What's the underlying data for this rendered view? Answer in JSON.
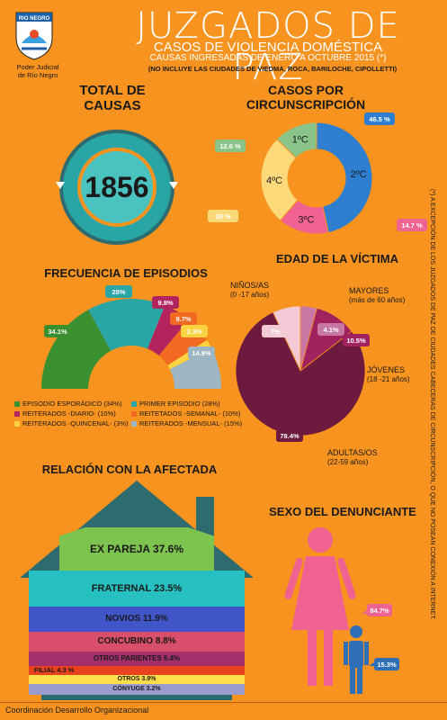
{
  "header": {
    "title": "JUZGADOS DE PAZ",
    "subtitle": "CASOS DE VIOLENCIA DOMÉSTICA",
    "range": "CAUSAS INGRESADAS DE ENERO A OCTUBRE 2015 (*)",
    "note": "(NO INCLUYE LAS CIUDADES DE VIEDMA, ROCA, BARILOCHE, CIPOLLETTI)",
    "logo_text": "RIO NEGRO",
    "logo_caption_1": "Poder Judicial",
    "logo_caption_2": "de Río Negro"
  },
  "side_note": "(*) A EXCEPCIÓN DE LOS JUZGADOS DE PAZ DE CIUDADES CABECERAS DE CIRCUNSCRIPCIÓN, O QUE NO POSEAN CONEXIÓN A INTERNET.",
  "footer": "Coordinación Desarrollo Organizacional",
  "colors": {
    "background": "#f7931e",
    "teal": "#2aa5a5",
    "blue": "#2f7fd0",
    "pink": "#f06292",
    "yellow": "#fdd97a",
    "green": "#8bc48a",
    "maroon": "#7a1b3f"
  },
  "chart_data": [
    {
      "type": "table",
      "title_line1": "TOTAL DE",
      "title_line2": "CAUSAS",
      "value": "1856"
    },
    {
      "type": "pie",
      "title_line1": "CASOS POR",
      "title_line2": "CIRCUNSCRIPCIÓN",
      "slices": [
        {
          "label": "2ºC",
          "value": 46.5,
          "badge": "46.5 %",
          "color": "#2f7fd0"
        },
        {
          "label": "3ºC",
          "value": 14.7,
          "badge": "14.7 %",
          "color": "#f06292"
        },
        {
          "label": "4ºC",
          "value": 26,
          "badge": "26 %",
          "color": "#fdd97a"
        },
        {
          "label": "1ºC",
          "value": 12.6,
          "badge": "12.6 %",
          "color": "#8bc48a"
        }
      ]
    },
    {
      "type": "pie",
      "title": "FRECUENCIA DE EPISODIOS",
      "slices": [
        {
          "label": "EPISODIO ESPORÁDICO (34%)",
          "value": 34.1,
          "badge": "34.1%",
          "color": "#3a8f2e"
        },
        {
          "label": "PRIMER EPISODIO (28%)",
          "value": 28,
          "badge": "28%",
          "color": "#2aa5a5"
        },
        {
          "label": "REITERADOS -DIARIO- (10%)",
          "value": 9.8,
          "badge": "9.8%",
          "color": "#b3245f"
        },
        {
          "label": "REITETADOS -SEMANAL- (10%)",
          "value": 9.7,
          "badge": "9.7%",
          "color": "#f26a21"
        },
        {
          "label": "REITERADOS -QUINCENAL- (3%)",
          "value": 3.3,
          "badge": "3.3%",
          "color": "#ffd23f"
        },
        {
          "label": "REITERADOS -MENSUAL- (15%)",
          "value": 14.9,
          "badge": "14.9%",
          "color": "#9eb5c4"
        }
      ]
    },
    {
      "type": "pie",
      "title": "EDAD DE LA VÍCTIMA",
      "slices": [
        {
          "label": "ADULTAS/OS",
          "sublabel": "(22-59 años)",
          "value": 78.4,
          "badge": "78.4%",
          "color": "#6d1a3e"
        },
        {
          "label": "NIÑOS/AS",
          "sublabel": "(0 -17 años)",
          "value": 7,
          "badge": "7%",
          "color": "#f2c9d4"
        },
        {
          "label": "MAYORES",
          "sublabel": "(más de 60 años)",
          "value": 4.1,
          "badge": "4.1%",
          "color": "#c978a6"
        },
        {
          "label": "JÓVENES",
          "sublabel": "(18 -21 años)",
          "value": 10.5,
          "badge": "10.5%",
          "color": "#a2215f"
        }
      ]
    },
    {
      "type": "bar",
      "title": "RELACIÓN CON LA AFECTADA",
      "categories": [
        "EX PAREJA",
        "FRATERNAL",
        "NOVIOS",
        "CONCUBINO",
        "OTROS PARIENTES",
        "FILIAL",
        "OTROS",
        "CÓNYUGE"
      ],
      "values": [
        37.6,
        23.5,
        11.9,
        8.8,
        6.4,
        4.3,
        3.9,
        3.2
      ],
      "labels": [
        "EX PAREJA 37.6%",
        "FRATERNAL 23.5%",
        "NOVIOS 11.9%",
        "CONCUBINO 8.8%",
        "OTROS PARIENTES  6.4%",
        "FILIAL 4.3 %",
        "OTROS 3.9%",
        "CÓNYUGE 3.2%"
      ],
      "colors": [
        "#7cc44f",
        "#26c0c0",
        "#3f55c8",
        "#d94e6a",
        "#a3306a",
        "#e8421f",
        "#ffe04a",
        "#9c9bcf"
      ]
    },
    {
      "type": "pie",
      "title": "SEXO DEL DENUNCIANTE",
      "slices": [
        {
          "label": "mujer",
          "value": 84.7,
          "badge": "84.7%",
          "color": "#f06292"
        },
        {
          "label": "hombre",
          "value": 15.3,
          "badge": "15.3%",
          "color": "#2f6fb6"
        }
      ]
    }
  ]
}
